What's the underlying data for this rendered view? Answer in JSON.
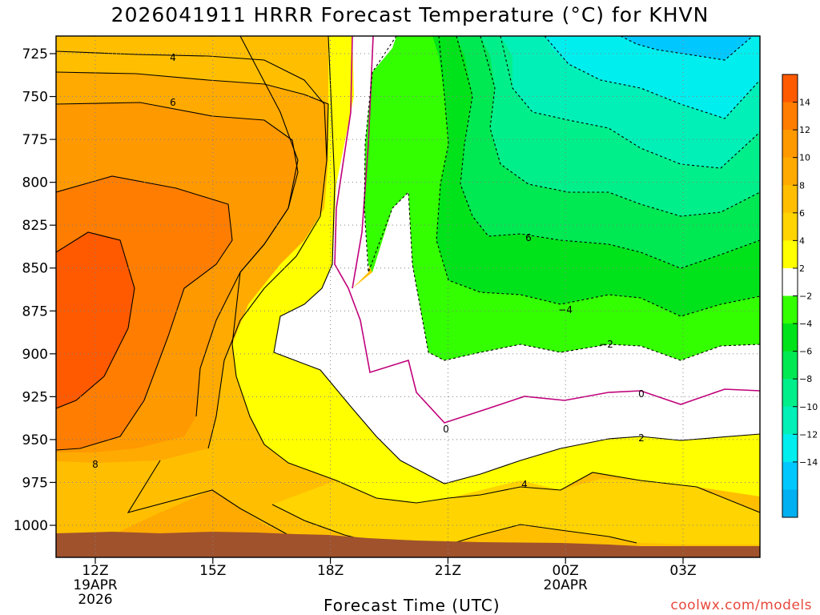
{
  "header": {
    "title": "2026041911 HRRR Forecast Temperature (°C) for KHVN"
  },
  "footer": {
    "xlabel": "Forecast Time (UTC)",
    "credit": "coolwx.com/models"
  },
  "colors": {
    "plus14": "#ff5a00",
    "plus12": "#ff7d00",
    "plus10": "#ff9900",
    "plus8": "#ffaa00",
    "plus6": "#ffbf00",
    "plus4": "#ffd400",
    "plus2": "#ffff00",
    "zero": "#ffffff",
    "minus2": "#33ff00",
    "minus4": "#00e31a",
    "minus6": "#00e852",
    "minus8": "#00ef8a",
    "minus10": "#00f0b8",
    "minus12": "#00eeee",
    "minus14": "#00c8ff",
    "minus16": "#00b0f0",
    "ground": "#a0522d",
    "freezing_line": "#c0007a",
    "grid": "#808080"
  },
  "chart_data": {
    "type": "time-height contour",
    "title": "2026041911 HRRR Forecast Temperature (°C) for KHVN",
    "xlabel": "Forecast Time (UTC)",
    "ylabel": "",
    "x_ticks": [
      {
        "lines": [
          "12Z",
          "19APR",
          "2026"
        ]
      },
      {
        "lines": [
          "15Z"
        ]
      },
      {
        "lines": [
          "18Z"
        ]
      },
      {
        "lines": [
          "21Z"
        ]
      },
      {
        "lines": [
          "00Z",
          "20APR"
        ]
      },
      {
        "lines": [
          "03Z"
        ]
      }
    ],
    "y_ticks": [
      "725",
      "750",
      "775",
      "800",
      "825",
      "850",
      "875",
      "900",
      "925",
      "950",
      "975",
      "1000"
    ],
    "y_axis": "pressure (hPa), inverted",
    "grid": "dotted",
    "colorbar": {
      "levels": [
        14,
        12,
        10,
        8,
        6,
        4,
        2,
        -2,
        -4,
        -6,
        -8,
        -10,
        -12,
        -14
      ],
      "labels": [
        "14",
        "12",
        "10",
        "8",
        "6",
        "4",
        "2",
        "−2",
        "−4",
        "−6",
        "−8",
        "−10",
        "−12",
        "−14"
      ],
      "colors": [
        "#ff5a00",
        "#ff7d00",
        "#ff9900",
        "#ffaa00",
        "#ffbf00",
        "#ffd400",
        "#ffff00",
        "#ffffff",
        "#33ff00",
        "#00e31a",
        "#00e852",
        "#00ef8a",
        "#00f0b8",
        "#00eeee",
        "#00c8ff",
        "#00b0f0"
      ],
      "placement": "right"
    },
    "contour_labels": [
      "4",
      "6",
      "8",
      "6",
      "−4",
      "−2",
      "0",
      "0",
      "2",
      "4"
    ],
    "freezing_level": "0"
  }
}
